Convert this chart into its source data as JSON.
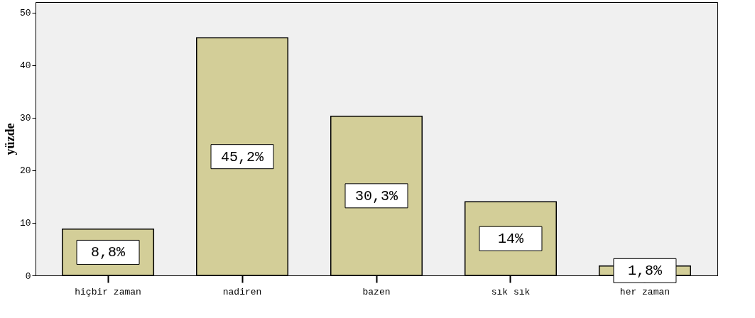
{
  "chart_data": {
    "type": "bar",
    "ylabel": "yüzde",
    "categories": [
      "hiçbir zaman",
      "nadiren",
      "bazen",
      "sık sık",
      "her zaman"
    ],
    "values": [
      8.8,
      45.2,
      30.3,
      14,
      1.8
    ],
    "value_labels": [
      "8,8%",
      "45,2%",
      "30,3%",
      "14%",
      "1,8%"
    ],
    "color": "#d3ce98",
    "ylim": [
      0,
      52
    ],
    "yticks": [
      0,
      10,
      20,
      30,
      40,
      50
    ],
    "grid": false
  }
}
